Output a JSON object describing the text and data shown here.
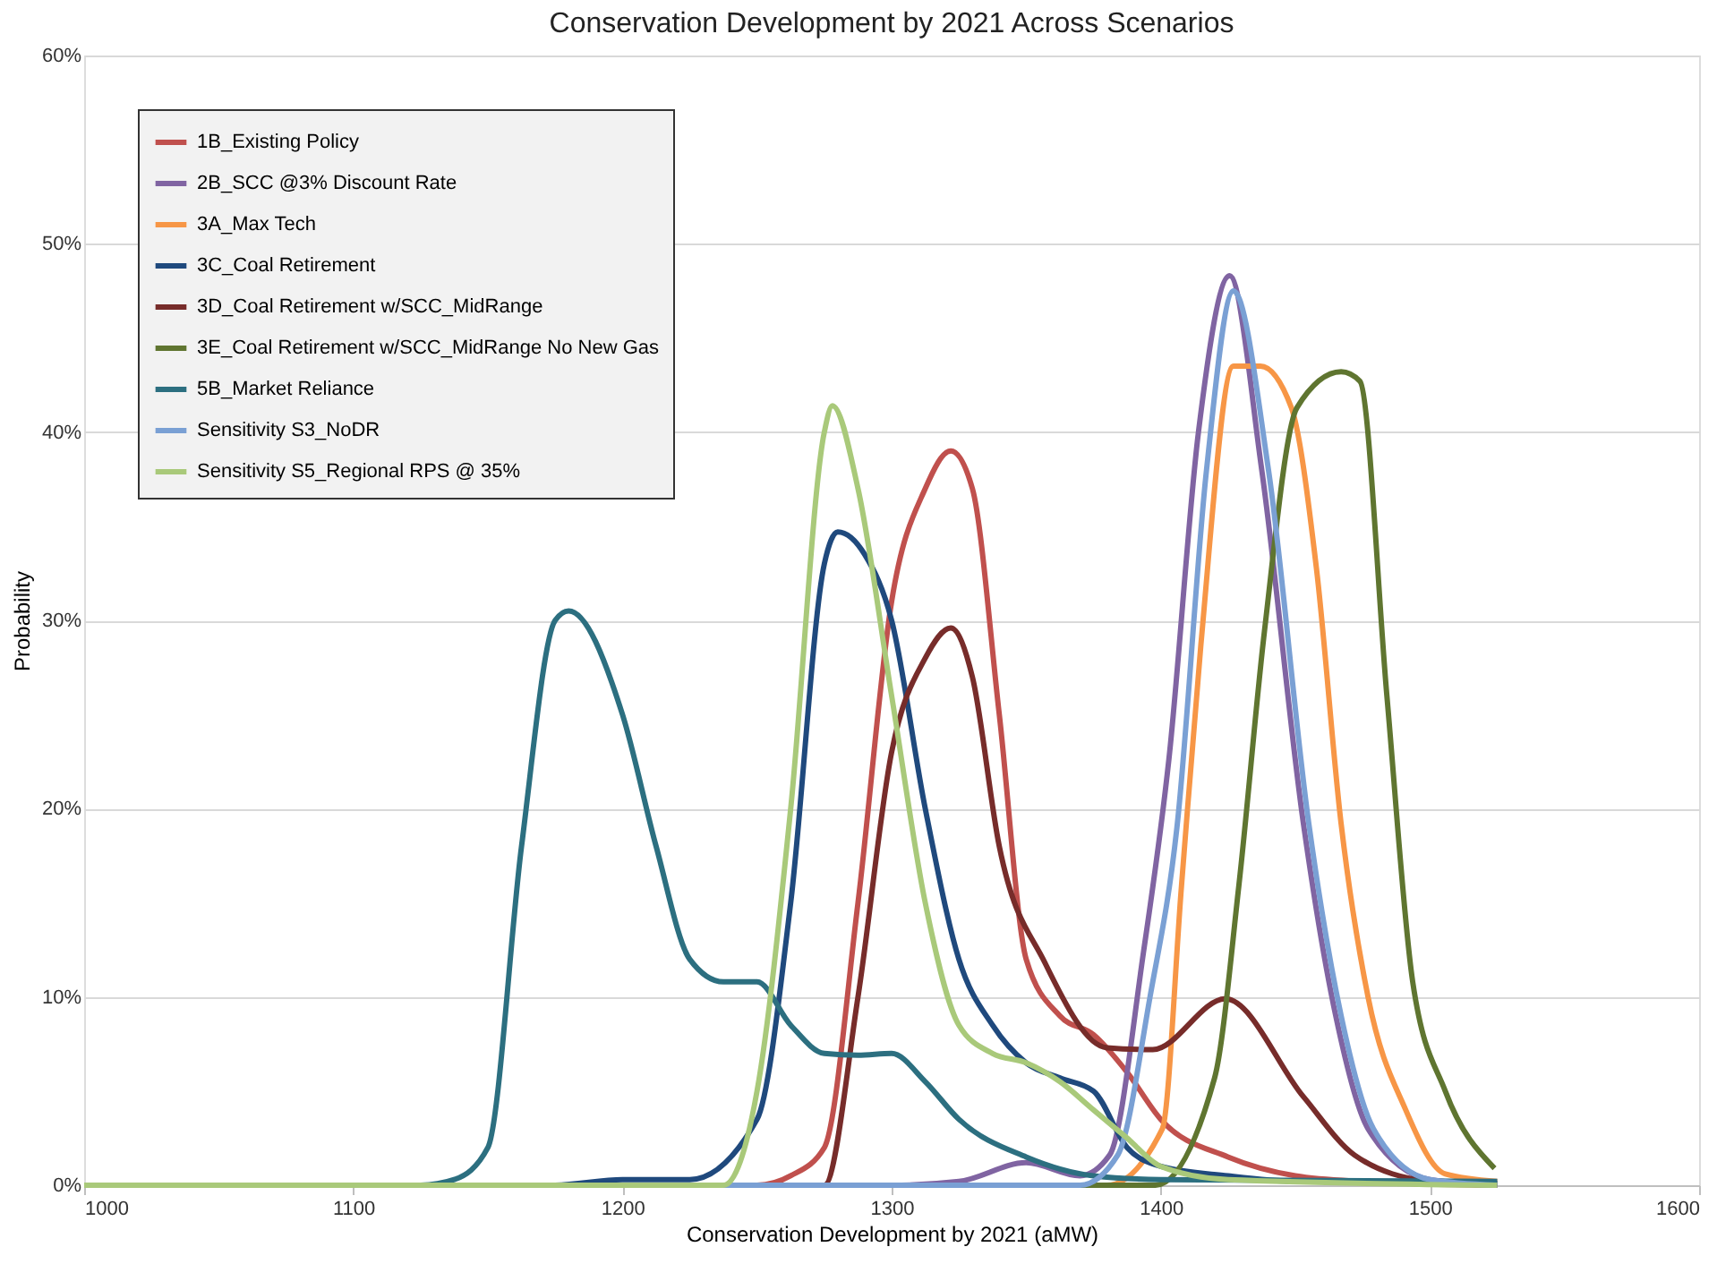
{
  "chart_data": {
    "type": "line",
    "title": "Conservation Development by 2021 Across Scenarios",
    "xlabel": "Conservation Development by 2021 (aMW)",
    "ylabel": "Probability",
    "xlim": [
      1000,
      1600
    ],
    "xticks": [
      1000,
      1100,
      1200,
      1300,
      1400,
      1500,
      1600
    ],
    "ylim": [
      0,
      60
    ],
    "yticks": [
      {
        "value": 0,
        "label": "0%"
      },
      {
        "value": 10,
        "label": "10%"
      },
      {
        "value": 20,
        "label": "20%"
      },
      {
        "value": 30,
        "label": "30%"
      },
      {
        "value": 40,
        "label": "40%"
      },
      {
        "value": 50,
        "label": "50%"
      },
      {
        "value": 60,
        "label": "60%"
      }
    ],
    "grid": "y",
    "legend": "top left",
    "line_style": "solid",
    "marker": "none",
    "series": [
      {
        "name": "1B_Existing Policy",
        "color": "#c0504d",
        "x": [
          1000,
          1250,
          1262.5,
          1275,
          1287.5,
          1300,
          1312.5,
          1322,
          1330,
          1340,
          1350,
          1362.5,
          1375,
          1387.5,
          1400,
          1425,
          1450,
          1475,
          1525
        ],
        "values": [
          0,
          0,
          0.5,
          2,
          15,
          31,
          37,
          39,
          37,
          25,
          12,
          9,
          8,
          6,
          3.5,
          1.5,
          0.5,
          0.2,
          0
        ]
      },
      {
        "name": "2B_SCC @3% Discount Rate",
        "color": "#8064a2",
        "x": [
          1000,
          1300,
          1325,
          1350,
          1370,
          1381,
          1393.6,
          1403,
          1414,
          1425.6,
          1437.5,
          1453,
          1465,
          1477,
          1500,
          1525
        ],
        "values": [
          0,
          0,
          0.2,
          1.2,
          0.5,
          1.6,
          12.4,
          22.6,
          40,
          48.3,
          38,
          19.2,
          9,
          3,
          0.3,
          0
        ]
      },
      {
        "name": "3A_Max Tech",
        "color": "#f79646",
        "x": [
          1000,
          1380,
          1400.6,
          1407.7,
          1414.9,
          1427,
          1437,
          1448.5,
          1457.8,
          1467,
          1477,
          1491,
          1505.7,
          1525
        ],
        "values": [
          0,
          0,
          3,
          15.9,
          28.7,
          43.5,
          43.5,
          41.3,
          32.8,
          19.2,
          10,
          4,
          0.6,
          0.2
        ]
      },
      {
        "name": "3C_Coal Retirement",
        "color": "#1f497d",
        "x": [
          1000,
          1175,
          1200,
          1225,
          1250,
          1262.5,
          1275,
          1280,
          1290,
          1300,
          1312.5,
          1325,
          1337.5,
          1350,
          1362.5,
          1375,
          1387.5,
          1400,
          1425,
          1450,
          1525
        ],
        "values": [
          0,
          0,
          0.3,
          0.3,
          3.5,
          15,
          33,
          34.7,
          33.5,
          30,
          20,
          12,
          8.5,
          6.5,
          5.7,
          5,
          2,
          1,
          0.5,
          0.2,
          0.1
        ]
      },
      {
        "name": "3D_Coal Retirement w/SCC_MidRange",
        "color": "#772c2a",
        "x": [
          1000,
          1275,
          1287.5,
          1300,
          1312.5,
          1322,
          1330,
          1340,
          1357,
          1380,
          1397,
          1424,
          1453,
          1472,
          1500,
          1525
        ],
        "values": [
          0,
          0,
          10,
          23,
          28,
          29.6,
          27,
          18,
          11.8,
          7.3,
          7.2,
          9.9,
          4.7,
          1.6,
          0.2,
          0
        ]
      },
      {
        "name": "3E_Coal Retirement w/SCC_MidRange No New Gas",
        "color": "#5f7530",
        "x": [
          1000,
          1398,
          1420,
          1429,
          1438.5,
          1450.6,
          1467,
          1474,
          1484,
          1493.6,
          1505.7,
          1524
        ],
        "values": [
          0,
          0,
          5.7,
          15.9,
          29.4,
          41.3,
          43.2,
          42.7,
          26,
          10.8,
          5,
          0.9
        ]
      },
      {
        "name": "5B_Market Reliance",
        "color": "#2c6f80",
        "x": [
          1000,
          1125,
          1137.5,
          1150,
          1162.5,
          1175,
          1180,
          1200,
          1212.5,
          1225,
          1237.5,
          1250,
          1262.5,
          1275,
          1287.5,
          1300,
          1312.5,
          1325,
          1350,
          1375,
          1400,
          1525
        ],
        "values": [
          0,
          0,
          0.3,
          2,
          18,
          30,
          30.5,
          25,
          18,
          12,
          10.8,
          10.8,
          8.5,
          7,
          6.9,
          7,
          5.5,
          3.5,
          1.5,
          0.5,
          0.3,
          0.2
        ]
      },
      {
        "name": "Sensitivity S3_NoDR",
        "color": "#7aa0d4",
        "x": [
          1000,
          1370,
          1384,
          1396,
          1406,
          1417,
          1427,
          1440,
          1455,
          1467,
          1479,
          1500,
          1525
        ],
        "values": [
          0,
          0,
          1.6,
          10,
          19,
          38,
          47.5,
          38,
          19.2,
          9,
          3,
          0.3,
          0
        ]
      },
      {
        "name": "Sensitivity S5_Regional RPS @ 35%",
        "color": "#a9c97a",
        "x": [
          1000,
          1200,
          1237.5,
          1250,
          1262.5,
          1275,
          1278,
          1287.5,
          1300,
          1312.5,
          1325,
          1337.5,
          1350,
          1362.5,
          1375,
          1387.5,
          1400,
          1425,
          1525
        ],
        "values": [
          0,
          0,
          0,
          5,
          20,
          40,
          41.4,
          37,
          26,
          15,
          8.5,
          7,
          6.5,
          5.5,
          4,
          2.5,
          1,
          0.3,
          0
        ]
      }
    ]
  }
}
